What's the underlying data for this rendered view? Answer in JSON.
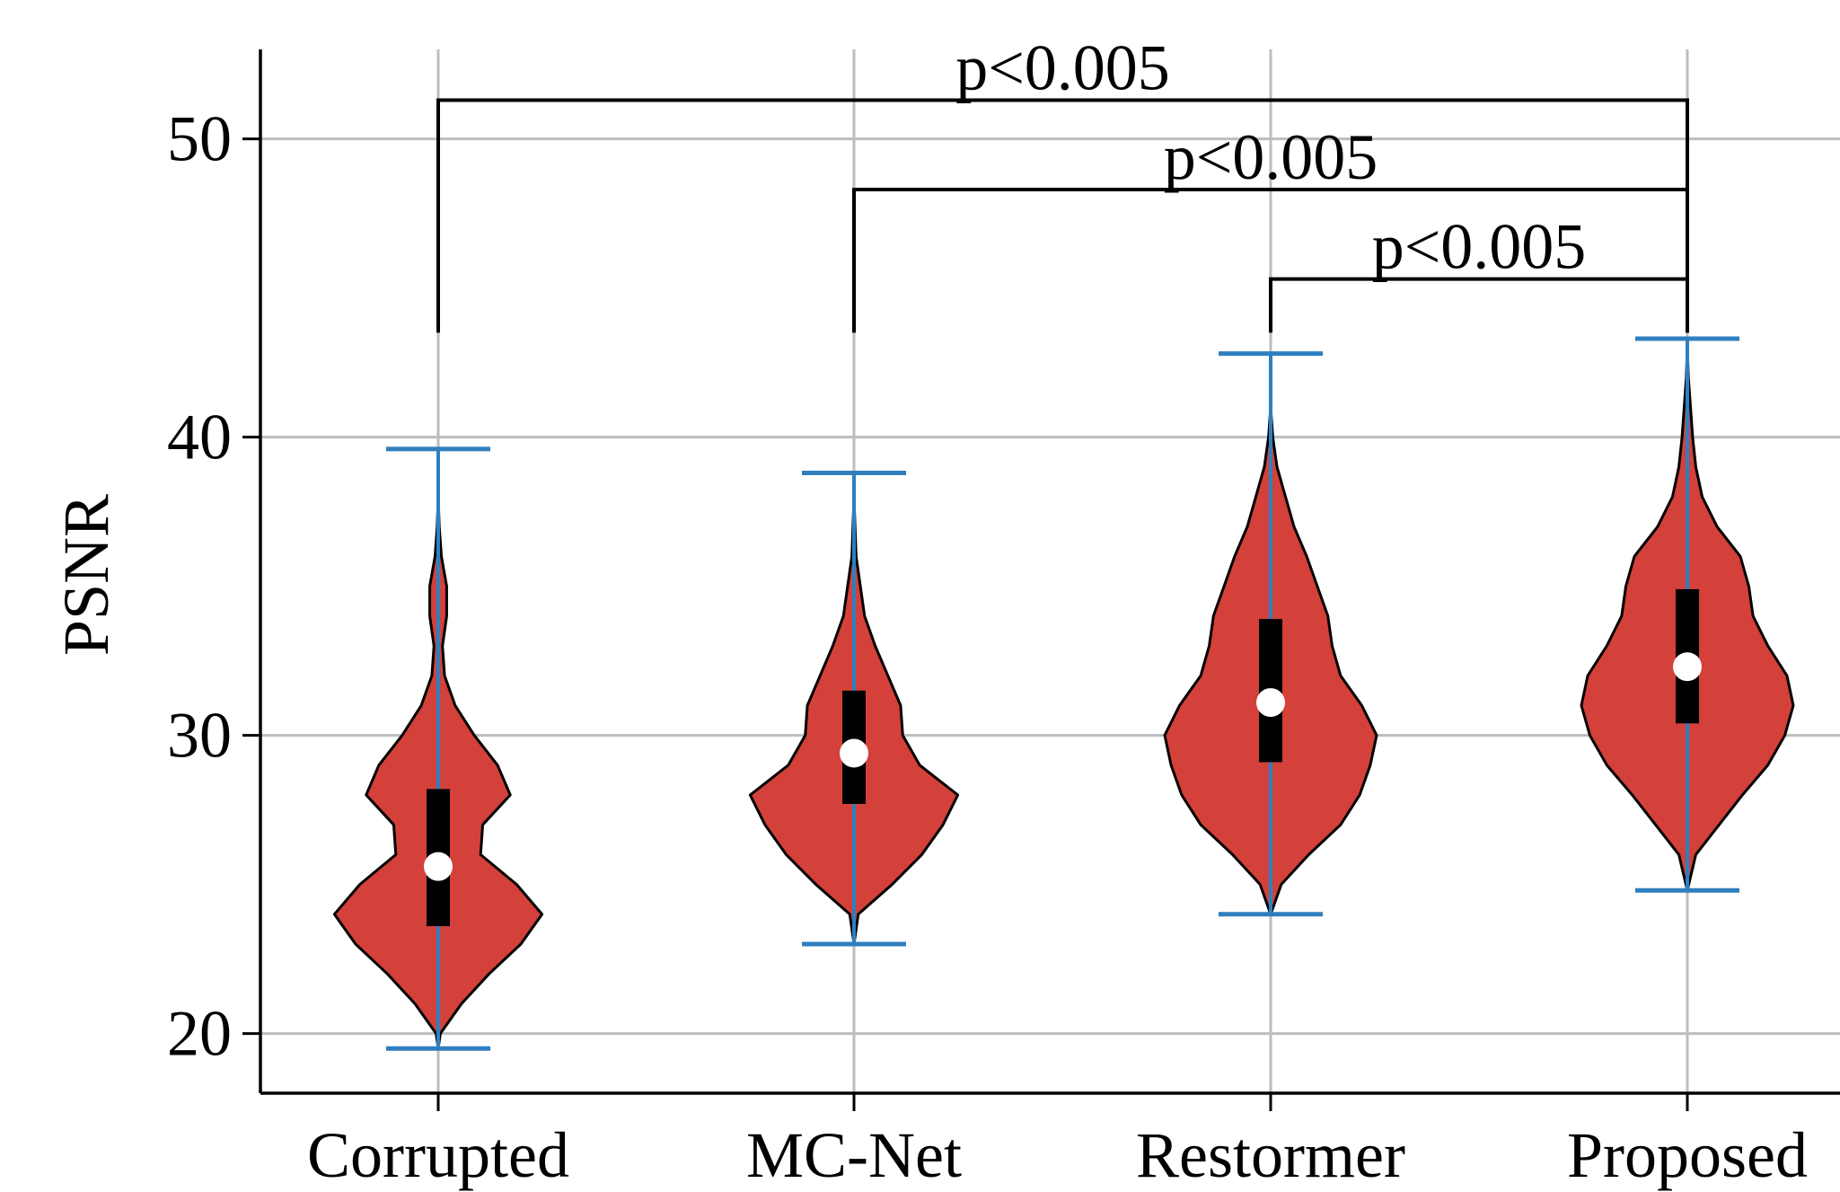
{
  "chart_data": {
    "type": "violin",
    "ylabel": "PSNR",
    "categories": [
      "Corrupted",
      "MC-Net",
      "Restormer",
      "Proposed"
    ],
    "ylim": [
      18,
      53
    ],
    "yticks": [
      20,
      30,
      40,
      50
    ],
    "grid": true,
    "colors": {
      "violin_fill": "#d4403a",
      "whisker": "#2f7fbf",
      "box": "#000000",
      "median_marker": "#ffffff",
      "grid": "#bdbdbd"
    },
    "series": [
      {
        "category": "Corrupted",
        "min": 19.5,
        "max": 39.6,
        "q1": 23.6,
        "q3": 28.2,
        "median": 25.6,
        "density": [
          [
            19.5,
            0.0
          ],
          [
            20.0,
            0.02
          ],
          [
            21.0,
            0.22
          ],
          [
            22.0,
            0.48
          ],
          [
            23.0,
            0.78
          ],
          [
            24.0,
            0.98
          ],
          [
            25.0,
            0.74
          ],
          [
            26.0,
            0.4
          ],
          [
            27.0,
            0.42
          ],
          [
            28.0,
            0.68
          ],
          [
            29.0,
            0.56
          ],
          [
            30.0,
            0.34
          ],
          [
            31.0,
            0.16
          ],
          [
            32.0,
            0.06
          ],
          [
            33.0,
            0.04
          ],
          [
            34.0,
            0.08
          ],
          [
            35.0,
            0.08
          ],
          [
            36.0,
            0.03
          ],
          [
            37.0,
            0.01
          ],
          [
            38.0,
            0.0
          ]
        ]
      },
      {
        "category": "MC-Net",
        "min": 23.0,
        "max": 38.8,
        "q1": 27.7,
        "q3": 31.5,
        "median": 29.4,
        "density": [
          [
            23.0,
            0.0
          ],
          [
            24.0,
            0.04
          ],
          [
            25.0,
            0.36
          ],
          [
            26.0,
            0.64
          ],
          [
            27.0,
            0.84
          ],
          [
            28.0,
            0.98
          ],
          [
            29.0,
            0.62
          ],
          [
            30.0,
            0.46
          ],
          [
            31.0,
            0.44
          ],
          [
            32.0,
            0.32
          ],
          [
            33.0,
            0.2
          ],
          [
            34.0,
            0.1
          ],
          [
            35.0,
            0.06
          ],
          [
            36.0,
            0.02
          ],
          [
            37.0,
            0.01
          ],
          [
            38.0,
            0.0
          ]
        ]
      },
      {
        "category": "Restormer",
        "min": 24.0,
        "max": 42.8,
        "q1": 29.1,
        "q3": 33.9,
        "median": 31.1,
        "density": [
          [
            24.0,
            0.0
          ],
          [
            25.0,
            0.1
          ],
          [
            26.0,
            0.36
          ],
          [
            27.0,
            0.66
          ],
          [
            28.0,
            0.84
          ],
          [
            29.0,
            0.94
          ],
          [
            30.0,
            1.0
          ],
          [
            31.0,
            0.86
          ],
          [
            32.0,
            0.66
          ],
          [
            33.0,
            0.58
          ],
          [
            34.0,
            0.54
          ],
          [
            35.0,
            0.44
          ],
          [
            36.0,
            0.34
          ],
          [
            37.0,
            0.22
          ],
          [
            38.0,
            0.14
          ],
          [
            39.0,
            0.06
          ],
          [
            40.0,
            0.02
          ],
          [
            41.0,
            0.0
          ]
        ]
      },
      {
        "category": "Proposed",
        "min": 24.8,
        "max": 43.3,
        "q1": 30.4,
        "q3": 34.9,
        "median": 32.3,
        "density": [
          [
            24.8,
            0.0
          ],
          [
            26.0,
            0.08
          ],
          [
            27.0,
            0.3
          ],
          [
            28.0,
            0.52
          ],
          [
            29.0,
            0.76
          ],
          [
            30.0,
            0.92
          ],
          [
            31.0,
            1.0
          ],
          [
            32.0,
            0.94
          ],
          [
            33.0,
            0.76
          ],
          [
            34.0,
            0.62
          ],
          [
            35.0,
            0.58
          ],
          [
            36.0,
            0.5
          ],
          [
            37.0,
            0.28
          ],
          [
            38.0,
            0.14
          ],
          [
            39.0,
            0.08
          ],
          [
            40.0,
            0.05
          ],
          [
            41.0,
            0.03
          ],
          [
            42.0,
            0.01
          ],
          [
            43.0,
            0.0
          ]
        ]
      }
    ],
    "annotations": [
      {
        "from": "Corrupted",
        "to": "Proposed",
        "y": 51.3,
        "from_drop_y": 43.5,
        "to_drop_y": 43.5,
        "text": "p<0.005"
      },
      {
        "from": "MC-Net",
        "to": "Proposed",
        "y": 48.3,
        "from_drop_y": 43.5,
        "to_drop_y": 43.5,
        "text": "p<0.005"
      },
      {
        "from": "Restormer",
        "to": "Proposed",
        "y": 45.3,
        "from_drop_y": 43.5,
        "to_drop_y": 43.5,
        "text": "p<0.005"
      }
    ]
  }
}
